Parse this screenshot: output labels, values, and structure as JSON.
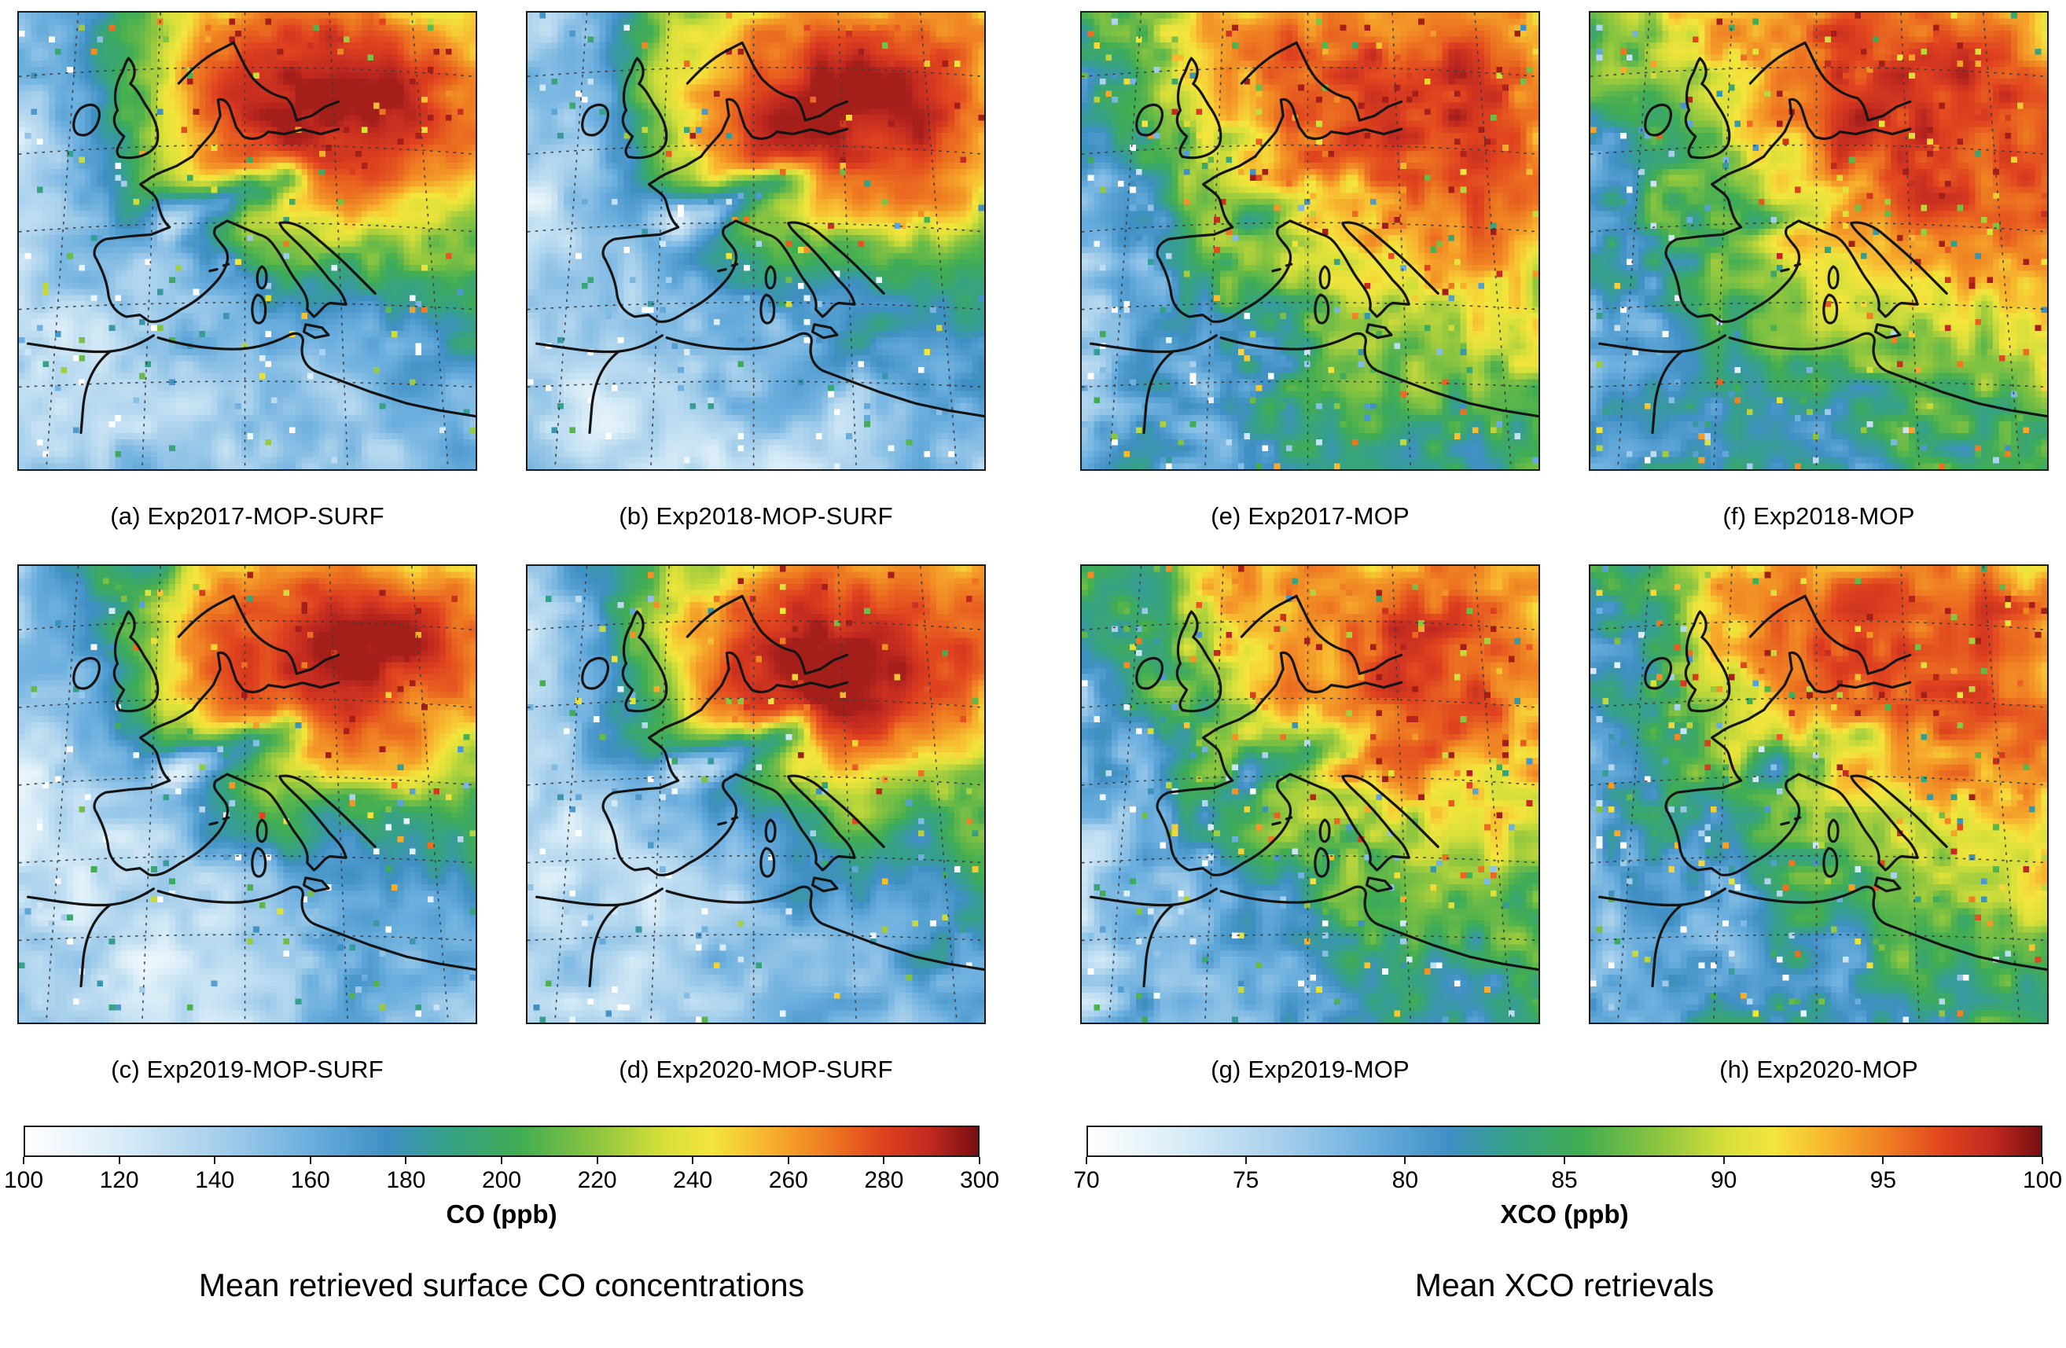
{
  "captions": {
    "surface": "Mean retrieved surface CO concentrations",
    "xco": "Mean XCO retrievals"
  },
  "panels": [
    {
      "id": "a",
      "label": "(a) Exp2017-MOP-SURF"
    },
    {
      "id": "b",
      "label": "(b) Exp2018-MOP-SURF"
    },
    {
      "id": "c",
      "label": "(c) Exp2019-MOP-SURF"
    },
    {
      "id": "d",
      "label": "(d) Exp2020-MOP-SURF"
    },
    {
      "id": "e",
      "label": "(e) Exp2017-MOP"
    },
    {
      "id": "f",
      "label": "(f) Exp2018-MOP"
    },
    {
      "id": "g",
      "label": "(g) Exp2019-MOP"
    },
    {
      "id": "h",
      "label": "(h) Exp2020-MOP"
    }
  ],
  "colorbars": {
    "co": {
      "title": "CO (ppb)",
      "min": 100,
      "max": 300,
      "ticks": [
        100,
        120,
        140,
        160,
        180,
        200,
        220,
        240,
        260,
        280,
        300
      ]
    },
    "xco": {
      "title": "XCO (ppb)",
      "min": 70,
      "max": 100,
      "ticks": [
        70,
        75,
        80,
        85,
        90,
        95,
        100
      ]
    }
  },
  "colormap": [
    [
      0.0,
      "#ffffff"
    ],
    [
      0.1,
      "#d8ecf7"
    ],
    [
      0.2,
      "#a8d0ec"
    ],
    [
      0.3,
      "#6aaede"
    ],
    [
      0.38,
      "#3f8fc4"
    ],
    [
      0.44,
      "#35a08a"
    ],
    [
      0.52,
      "#41ad52"
    ],
    [
      0.6,
      "#8ec63f"
    ],
    [
      0.67,
      "#d7df3a"
    ],
    [
      0.72,
      "#f4e53c"
    ],
    [
      0.78,
      "#f7b32e"
    ],
    [
      0.84,
      "#ef7d22"
    ],
    [
      0.9,
      "#e0431f"
    ],
    [
      0.95,
      "#c22a20"
    ],
    [
      1.0,
      "#7a0f12"
    ]
  ],
  "chart_data": [
    {
      "type": "heatmap",
      "title": "Mean retrieved surface CO concentrations",
      "variable": "CO",
      "units": "ppb",
      "region": "Europe and western Mediterranean (approx. 20W-30E, 30N-62N), pixelated retrieval grid with coastlines and dotted graticule",
      "colorbar_label": "CO (ppb)",
      "vmin": 100,
      "vmax": 300,
      "tick_values": [
        100,
        120,
        140,
        160,
        180,
        200,
        220,
        240,
        260,
        280,
        300
      ],
      "panels": [
        {
          "id": "a",
          "experiment": "Exp2017-MOP-SURF"
        },
        {
          "id": "b",
          "experiment": "Exp2018-MOP-SURF"
        },
        {
          "id": "c",
          "experiment": "Exp2019-MOP-SURF"
        },
        {
          "id": "d",
          "experiment": "Exp2020-MOP-SURF"
        }
      ],
      "qualitative_values_ppb": {
        "central_and_eastern_europe_plume": "230-300 (orange to dark red maximum over Germany/Poland/Benelux)",
        "north_atlantic_ocean": "110-150 (white to light blue)",
        "iberian_peninsula": "130-165 (blue)",
        "alpine_arc_minimum_band": "160-190 (distinct blue-teal streak across the Alps)",
        "mediterranean_sea": "140-170 (blue)",
        "scandinavia_north_sea": "170-210 (green to yellow)"
      }
    },
    {
      "type": "heatmap",
      "title": "Mean XCO retrievals",
      "variable": "XCO",
      "units": "ppb",
      "region": "Europe and western Mediterranean (approx. 20W-30E, 30N-62N), pixelated retrieval grid with coastlines and dotted graticule",
      "colorbar_label": "XCO (ppb)",
      "vmin": 70,
      "vmax": 100,
      "tick_values": [
        70,
        75,
        80,
        85,
        90,
        95,
        100
      ],
      "panels": [
        {
          "id": "e",
          "experiment": "Exp2017-MOP"
        },
        {
          "id": "f",
          "experiment": "Exp2018-MOP"
        },
        {
          "id": "g",
          "experiment": "Exp2019-MOP"
        },
        {
          "id": "h",
          "experiment": "Exp2020-MOP"
        }
      ],
      "qualitative_values_ppb": {
        "central_and_eastern_europe": "90-100 (red to dark red maximum, strongest in Exp2018 and Exp2019)",
        "north_atlantic_ocean": "72-80 (white-blue to blue)",
        "iberian_peninsula": "78-86 (teal to green)",
        "british_isles": "82-90 (green to yellow-orange)",
        "alpine_arc": "82-88 local dip (green band) with adjacent dark red Po valley",
        "mediterranean_sea": "78-85 (blue-green)"
      }
    }
  ]
}
